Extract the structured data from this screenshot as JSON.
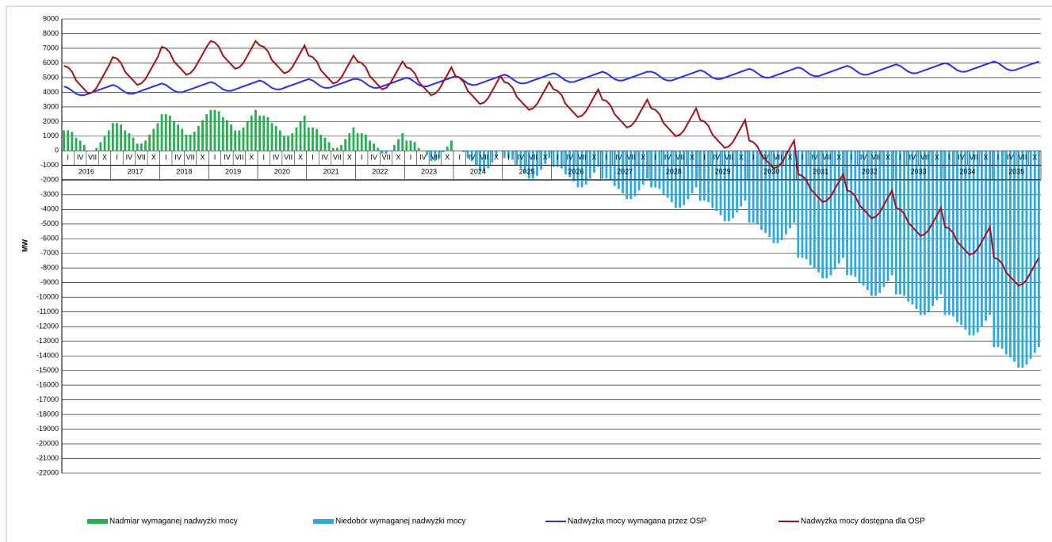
{
  "chart_data": {
    "type": "bar-line",
    "y_label": "MW",
    "ylim": [
      -22000,
      9000
    ],
    "yticks": [
      -22000,
      -21000,
      -20000,
      -19000,
      -18000,
      -17000,
      -16000,
      -15000,
      -14000,
      -13000,
      -12000,
      -11000,
      -10000,
      -9000,
      -8000,
      -7000,
      -6000,
      -5000,
      -4000,
      -3000,
      -2000,
      -1000,
      0,
      1000,
      2000,
      3000,
      4000,
      5000,
      6000,
      7000,
      8000,
      9000
    ],
    "grid": true,
    "years": [
      "2016",
      "2017",
      "2018",
      "2019",
      "2020",
      "2021",
      "2022",
      "2023",
      "2024",
      "2025",
      "2026",
      "2027",
      "2028",
      "2029",
      "2030",
      "2031",
      "2032",
      "2033",
      "2034",
      "2035"
    ],
    "quarter_labels": [
      "I",
      "IV",
      "VII",
      "X"
    ],
    "bars": {
      "positive": {
        "name": "Nadmiar wymaganej nadwyżki mocy",
        "color": "#22b14c"
      },
      "negative": {
        "name": "Niedobór wymaganej nadwyżki mocy",
        "color": "#29abe2"
      },
      "values": [
        1400,
        1400,
        1300,
        900,
        700,
        400,
        0,
        0,
        200,
        600,
        1000,
        1400,
        1900,
        1900,
        1800,
        1400,
        1200,
        900,
        500,
        500,
        700,
        1100,
        1500,
        1900,
        2500,
        2500,
        2400,
        2000,
        1800,
        1500,
        1100,
        1100,
        1300,
        1700,
        2100,
        2500,
        2800,
        2800,
        2700,
        2300,
        2100,
        1800,
        1400,
        1400,
        1600,
        2000,
        2400,
        2800,
        2400,
        2400,
        2300,
        1900,
        1700,
        1400,
        1000,
        1000,
        1200,
        1600,
        2000,
        2400,
        1600,
        1600,
        1500,
        1100,
        900,
        600,
        200,
        200,
        400,
        800,
        1200,
        1600,
        1200,
        1200,
        1100,
        700,
        500,
        200,
        -200,
        -200,
        0,
        400,
        800,
        1200,
        700,
        700,
        600,
        200,
        0,
        -300,
        -700,
        -700,
        -500,
        -100,
        300,
        700,
        0,
        0,
        -100,
        -500,
        -700,
        -1000,
        -1400,
        -1400,
        -1200,
        -800,
        -400,
        0,
        -500,
        -500,
        -600,
        -1000,
        -1200,
        -1500,
        -1900,
        -1900,
        -1700,
        -1300,
        -900,
        -500,
        -1100,
        -1100,
        -1200,
        -1600,
        -1800,
        -2100,
        -2500,
        -2500,
        -2300,
        -1900,
        -1500,
        -1100,
        -1900,
        -1900,
        -2000,
        -2400,
        -2600,
        -2900,
        -3300,
        -3300,
        -3100,
        -2700,
        -2300,
        -1900,
        -2500,
        -2500,
        -2600,
        -3000,
        -3200,
        -3500,
        -3900,
        -3900,
        -3700,
        -3300,
        -2900,
        -2500,
        -3400,
        -3400,
        -3500,
        -3900,
        -4100,
        -4400,
        -4800,
        -4800,
        -4600,
        -4200,
        -3800,
        -3400,
        -4900,
        -4900,
        -5000,
        -5400,
        -5600,
        -5900,
        -6300,
        -6300,
        -6100,
        -5700,
        -5300,
        -4900,
        -7300,
        -7300,
        -7400,
        -7800,
        -8000,
        -8300,
        -8700,
        -8700,
        -8500,
        -8100,
        -7700,
        -7300,
        -8500,
        -8500,
        -8600,
        -9000,
        -9200,
        -9500,
        -9900,
        -9900,
        -9700,
        -9300,
        -8900,
        -8500,
        -9800,
        -9800,
        -9900,
        -10300,
        -10500,
        -10800,
        -11200,
        -11200,
        -11000,
        -10600,
        -10200,
        -9800,
        -11200,
        -11200,
        -11300,
        -11700,
        -11900,
        -12200,
        -12600,
        -12600,
        -12400,
        -12000,
        -11600,
        -11200,
        -13400,
        -13400,
        -13500,
        -13900,
        -14100,
        -14400,
        -14800,
        -14800,
        -14600,
        -14200,
        -13800,
        -13400
      ]
    },
    "series": [
      {
        "name": "Nadwyżka mocy wymagana przez OSP",
        "color": "#2b2bff",
        "values": [
          4400,
          4300,
          4100,
          3900,
          3800,
          3800,
          3900,
          4000,
          4100,
          4200,
          4300,
          4400,
          4500,
          4400,
          4200,
          4000,
          3900,
          3900,
          4000,
          4100,
          4200,
          4300,
          4400,
          4500,
          4600,
          4500,
          4300,
          4100,
          4000,
          4000,
          4100,
          4200,
          4300,
          4400,
          4500,
          4600,
          4700,
          4600,
          4400,
          4200,
          4100,
          4100,
          4200,
          4300,
          4400,
          4500,
          4600,
          4700,
          4800,
          4700,
          4500,
          4300,
          4200,
          4200,
          4300,
          4400,
          4500,
          4600,
          4700,
          4800,
          4900,
          4800,
          4600,
          4400,
          4300,
          4300,
          4400,
          4500,
          4600,
          4700,
          4800,
          4900,
          4900,
          4800,
          4600,
          4400,
          4300,
          4300,
          4400,
          4500,
          4600,
          4700,
          4800,
          4900,
          5000,
          4900,
          4700,
          4500,
          4400,
          4400,
          4500,
          4600,
          4700,
          4800,
          4900,
          5000,
          5100,
          5000,
          4800,
          4600,
          4500,
          4500,
          4600,
          4700,
          4800,
          4900,
          5000,
          5100,
          5200,
          5100,
          4900,
          4700,
          4600,
          4600,
          4700,
          4800,
          4900,
          5000,
          5100,
          5200,
          5300,
          5200,
          5000,
          4800,
          4700,
          4700,
          4800,
          4900,
          5000,
          5100,
          5200,
          5300,
          5400,
          5300,
          5100,
          4900,
          4800,
          4800,
          4900,
          5000,
          5100,
          5200,
          5300,
          5400,
          5400,
          5300,
          5100,
          4900,
          4800,
          4800,
          4900,
          5000,
          5100,
          5200,
          5300,
          5400,
          5500,
          5400,
          5200,
          5000,
          4900,
          4900,
          5000,
          5100,
          5200,
          5300,
          5400,
          5500,
          5600,
          5500,
          5300,
          5100,
          5000,
          5000,
          5100,
          5200,
          5300,
          5400,
          5500,
          5600,
          5700,
          5600,
          5400,
          5200,
          5100,
          5100,
          5200,
          5300,
          5400,
          5500,
          5600,
          5700,
          5800,
          5700,
          5500,
          5300,
          5200,
          5200,
          5300,
          5400,
          5500,
          5600,
          5700,
          5800,
          5900,
          5800,
          5600,
          5400,
          5300,
          5300,
          5400,
          5500,
          5600,
          5700,
          5800,
          5900,
          6000,
          5900,
          5700,
          5500,
          5400,
          5400,
          5500,
          5600,
          5700,
          5800,
          5900,
          6000,
          6100,
          6000,
          5800,
          5600,
          5500,
          5500,
          5600,
          5700,
          5800,
          5900,
          6000,
          6100
        ]
      },
      {
        "name": "Nadwyżka mocy dostępna dla OSP",
        "color": "#a50f15",
        "values": [
          5800,
          5700,
          5400,
          4800,
          4500,
          4200,
          3900,
          4000,
          4300,
          4800,
          5300,
          5800,
          6400,
          6300,
          6000,
          5400,
          5100,
          4800,
          4500,
          4600,
          4900,
          5400,
          5900,
          6400,
          7100,
          7000,
          6700,
          6100,
          5800,
          5500,
          5200,
          5300,
          5600,
          6100,
          6600,
          7100,
          7500,
          7400,
          7100,
          6500,
          6200,
          5900,
          5600,
          5700,
          6000,
          6500,
          7000,
          7500,
          7200,
          7100,
          6800,
          6200,
          5900,
          5600,
          5300,
          5400,
          5700,
          6200,
          6700,
          7200,
          6500,
          6400,
          6100,
          5500,
          5200,
          4900,
          4600,
          4700,
          5000,
          5500,
          6000,
          6500,
          6100,
          6000,
          5700,
          5100,
          4800,
          4500,
          4200,
          4300,
          4600,
          5100,
          5600,
          6100,
          5700,
          5600,
          5300,
          4700,
          4400,
          4100,
          3800,
          3900,
          4200,
          4700,
          5200,
          5700,
          5100,
          5000,
          4700,
          4100,
          3800,
          3500,
          3200,
          3300,
          3600,
          4100,
          4600,
          5100,
          4700,
          4600,
          4300,
          3700,
          3400,
          3100,
          2800,
          2900,
          3200,
          3700,
          4200,
          4700,
          4200,
          4100,
          3800,
          3200,
          2900,
          2600,
          2300,
          2400,
          2700,
          3200,
          3700,
          4200,
          3500,
          3400,
          3100,
          2500,
          2200,
          1900,
          1600,
          1700,
          2000,
          2500,
          3000,
          3500,
          2900,
          2800,
          2500,
          1900,
          1600,
          1300,
          1000,
          1100,
          1400,
          1900,
          2400,
          2900,
          2100,
          2000,
          1700,
          1100,
          800,
          500,
          200,
          300,
          600,
          1100,
          1600,
          2100,
          700,
          600,
          300,
          -300,
          -600,
          -900,
          -1200,
          -1100,
          -800,
          -300,
          200,
          700,
          -1600,
          -1700,
          -2000,
          -2600,
          -2900,
          -3200,
          -3500,
          -3400,
          -3100,
          -2600,
          -2100,
          -1600,
          -2700,
          -2800,
          -3100,
          -3700,
          -4000,
          -4300,
          -4600,
          -4500,
          -4200,
          -3700,
          -3200,
          -2700,
          -3900,
          -4000,
          -4300,
          -4900,
          -5200,
          -5500,
          -5800,
          -5700,
          -5400,
          -4900,
          -4400,
          -3900,
          -5200,
          -5300,
          -5600,
          -6200,
          -6500,
          -6800,
          -7100,
          -7000,
          -6700,
          -6200,
          -5700,
          -5200,
          -7300,
          -7400,
          -7700,
          -8300,
          -8600,
          -8900,
          -9200,
          -9100,
          -8800,
          -8300,
          -7800,
          -7300
        ]
      }
    ]
  }
}
